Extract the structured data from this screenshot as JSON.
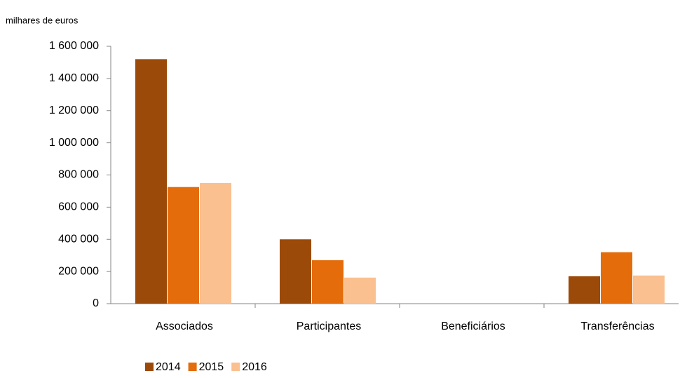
{
  "chart_data": {
    "type": "bar",
    "axis_label": "milhares de euros",
    "categories": [
      "Associados",
      "Participantes",
      "Beneficiários",
      "Transferências"
    ],
    "series": [
      {
        "name": "2014",
        "color": "#9c4a09",
        "values": [
          1520000,
          400000,
          0,
          170000
        ]
      },
      {
        "name": "2015",
        "color": "#e46c0a",
        "values": [
          725000,
          270000,
          0,
          320000
        ]
      },
      {
        "name": "2016",
        "color": "#fac090",
        "values": [
          750000,
          162000,
          0,
          175000
        ]
      }
    ],
    "ylim": [
      0,
      1600000
    ],
    "yticks": [
      0,
      {
        "value": 200000,
        "label": "200 000"
      },
      {
        "value": 400000,
        "label": "400 000"
      },
      {
        "value": 600000,
        "label": "600 000"
      },
      {
        "value": 800000,
        "label": "800 000"
      },
      {
        "value": 1000000,
        "label": "1 000 000"
      },
      {
        "value": 1200000,
        "label": "1 200 000"
      },
      {
        "value": 1400000,
        "label": "1 400 000"
      },
      {
        "value": 1600000,
        "label": "1 600 000"
      }
    ],
    "grid": false,
    "legend": "bottom"
  }
}
